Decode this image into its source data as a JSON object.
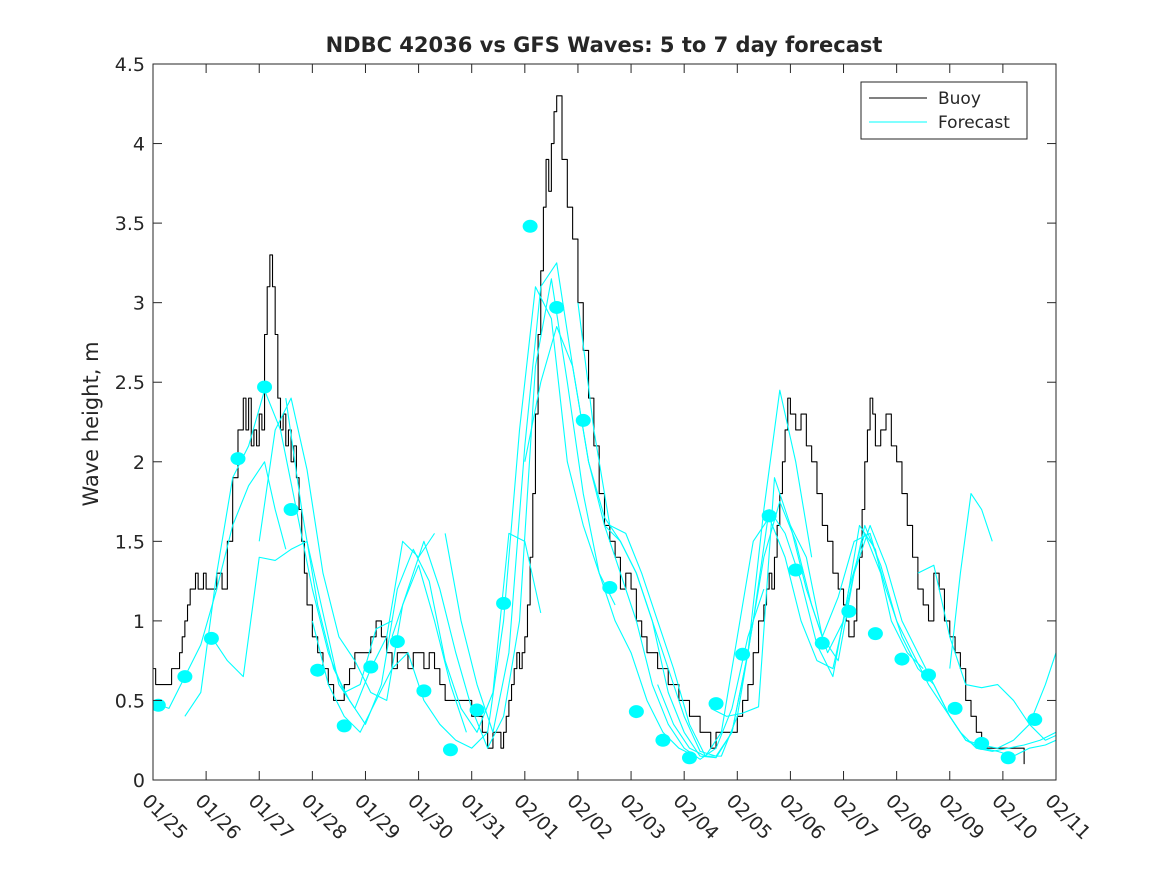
{
  "chart_data": {
    "type": "line",
    "title": "NDBC 42036 vs GFS Waves: 5 to 7 day forecast",
    "xlabel": "",
    "ylabel": "Wave height, m",
    "xlim": [
      0,
      17
    ],
    "ylim": [
      0,
      4.5
    ],
    "x_unit": "days since 01/25",
    "xtick_values": [
      0,
      1,
      2,
      3,
      4,
      5,
      6,
      7,
      8,
      9,
      10,
      11,
      12,
      13,
      14,
      15,
      16,
      17
    ],
    "xtick_labels": [
      "01/25",
      "01/26",
      "01/27",
      "01/28",
      "01/29",
      "01/30",
      "01/31",
      "02/01",
      "02/02",
      "02/03",
      "02/04",
      "02/05",
      "02/06",
      "02/07",
      "02/08",
      "02/09",
      "02/10",
      "02/11"
    ],
    "ytick_values": [
      0,
      0.5,
      1,
      1.5,
      2,
      2.5,
      3,
      3.5,
      4,
      4.5
    ],
    "ytick_labels": [
      "0",
      "0.5",
      "1",
      "1.5",
      "2",
      "2.5",
      "3",
      "3.5",
      "4",
      "4.5"
    ],
    "legend": {
      "position": "top-right",
      "entries": [
        "Buoy",
        "Forecast"
      ]
    },
    "colors": {
      "buoy": "#000000",
      "forecast": "#00ffff",
      "axis": "#262626"
    },
    "series": [
      {
        "name": "Buoy",
        "style": "step",
        "x": [
          0,
          0.05,
          0.1,
          0.2,
          0.35,
          0.5,
          0.55,
          0.6,
          0.65,
          0.7,
          0.75,
          0.8,
          0.85,
          0.9,
          0.95,
          1.0,
          1.1,
          1.2,
          1.3,
          1.4,
          1.5,
          1.6,
          1.7,
          1.75,
          1.8,
          1.85,
          1.9,
          1.95,
          2.0,
          2.05,
          2.1,
          2.15,
          2.2,
          2.25,
          2.3,
          2.35,
          2.4,
          2.45,
          2.5,
          2.55,
          2.6,
          2.65,
          2.7,
          2.75,
          2.8,
          2.85,
          2.9,
          3.0,
          3.1,
          3.2,
          3.3,
          3.4,
          3.5,
          3.6,
          3.7,
          3.8,
          3.9,
          4.0,
          4.1,
          4.2,
          4.3,
          4.4,
          4.5,
          4.6,
          4.7,
          4.8,
          4.9,
          5.0,
          5.1,
          5.2,
          5.3,
          5.4,
          5.5,
          5.6,
          5.7,
          5.8,
          5.9,
          6.0,
          6.1,
          6.2,
          6.3,
          6.4,
          6.5,
          6.55,
          6.6,
          6.65,
          6.7,
          6.75,
          6.8,
          6.85,
          6.9,
          6.95,
          7.0,
          7.05,
          7.1,
          7.15,
          7.2,
          7.25,
          7.3,
          7.35,
          7.4,
          7.45,
          7.5,
          7.55,
          7.6,
          7.7,
          7.8,
          7.9,
          8.0,
          8.1,
          8.2,
          8.3,
          8.4,
          8.5,
          8.6,
          8.7,
          8.8,
          8.9,
          9.0,
          9.1,
          9.2,
          9.3,
          9.5,
          9.7,
          9.9,
          10.1,
          10.3,
          10.5,
          10.6,
          10.7,
          10.8,
          10.9,
          11.0,
          11.1,
          11.2,
          11.3,
          11.4,
          11.5,
          11.55,
          11.6,
          11.65,
          11.7,
          11.75,
          11.8,
          11.85,
          11.9,
          11.95,
          12.0,
          12.1,
          12.2,
          12.3,
          12.4,
          12.5,
          12.6,
          12.7,
          12.8,
          12.9,
          13.0,
          13.05,
          13.1,
          13.15,
          13.2,
          13.25,
          13.3,
          13.35,
          13.4,
          13.45,
          13.5,
          13.55,
          13.6,
          13.7,
          13.8,
          13.9,
          14.0,
          14.1,
          14.2,
          14.3,
          14.4,
          14.5,
          14.6,
          14.7,
          14.8,
          14.9,
          15.0,
          15.1,
          15.2,
          15.3,
          15.4,
          15.5,
          15.6,
          15.7,
          15.8,
          15.9,
          16.0,
          16.1,
          16.2,
          16.3,
          16.4
        ],
        "values": [
          0.7,
          0.6,
          0.6,
          0.6,
          0.7,
          0.8,
          0.9,
          1.0,
          1.1,
          1.2,
          1.2,
          1.3,
          1.2,
          1.2,
          1.3,
          1.2,
          1.2,
          1.3,
          1.2,
          1.5,
          1.9,
          2.2,
          2.4,
          2.2,
          2.4,
          2.1,
          2.2,
          2.1,
          2.3,
          2.2,
          2.8,
          3.1,
          3.3,
          3.1,
          2.8,
          2.4,
          2.2,
          2.3,
          2.1,
          2.2,
          2.0,
          2.1,
          1.9,
          1.7,
          1.5,
          1.3,
          1.1,
          0.9,
          0.8,
          0.7,
          0.6,
          0.5,
          0.5,
          0.6,
          0.7,
          0.8,
          0.8,
          0.8,
          0.9,
          1.0,
          0.9,
          0.8,
          0.7,
          0.8,
          0.8,
          0.7,
          0.8,
          0.8,
          0.7,
          0.8,
          0.7,
          0.6,
          0.5,
          0.5,
          0.5,
          0.5,
          0.5,
          0.4,
          0.4,
          0.3,
          0.2,
          0.3,
          0.3,
          0.2,
          0.3,
          0.4,
          0.5,
          0.6,
          0.7,
          0.8,
          0.7,
          0.8,
          0.9,
          1.1,
          1.4,
          1.8,
          2.3,
          2.8,
          3.2,
          3.6,
          3.9,
          3.7,
          4.0,
          4.2,
          4.3,
          3.9,
          3.6,
          3.4,
          3.0,
          2.7,
          2.4,
          2.1,
          1.8,
          1.6,
          1.5,
          1.4,
          1.2,
          1.3,
          1.2,
          1.0,
          0.9,
          0.8,
          0.7,
          0.6,
          0.5,
          0.4,
          0.3,
          0.2,
          0.3,
          0.3,
          0.3,
          0.3,
          0.4,
          0.5,
          0.6,
          0.8,
          1.0,
          1.1,
          1.2,
          1.3,
          1.2,
          1.4,
          1.6,
          1.8,
          2.0,
          2.2,
          2.4,
          2.3,
          2.2,
          2.3,
          2.1,
          2.0,
          1.8,
          1.6,
          1.5,
          1.3,
          1.2,
          1.1,
          1.0,
          0.9,
          0.9,
          1.0,
          1.2,
          1.4,
          1.7,
          2.0,
          2.2,
          2.4,
          2.3,
          2.1,
          2.2,
          2.3,
          2.1,
          2.0,
          1.8,
          1.6,
          1.4,
          1.2,
          1.1,
          1.0,
          1.3,
          1.2,
          1.0,
          0.9,
          0.8,
          0.7,
          0.5,
          0.4,
          0.3,
          0.2,
          0.2,
          0.2,
          0.2,
          0.2,
          0.2,
          0.2,
          0.2,
          0.1
        ]
      },
      {
        "name": "Forecast run 1",
        "x": [
          0.05,
          0.3,
          0.6,
          0.9,
          1.2,
          1.5,
          1.8,
          2.1,
          2.3,
          2.5
        ],
        "values": [
          0.48,
          0.45,
          0.65,
          0.85,
          1.2,
          1.6,
          1.85,
          2.0,
          1.7,
          1.45
        ]
      },
      {
        "name": "Forecast run 2",
        "x": [
          0.6,
          0.9,
          1.2,
          1.5,
          1.8,
          2.1,
          2.4,
          2.7,
          3.0,
          3.3,
          3.6,
          3.9,
          4.2,
          4.5
        ],
        "values": [
          0.4,
          0.55,
          1.3,
          1.9,
          2.1,
          2.45,
          2.2,
          1.7,
          1.2,
          0.8,
          0.55,
          0.6,
          0.95,
          1.0
        ]
      },
      {
        "name": "Forecast run 3",
        "x": [
          1.1,
          1.4,
          1.7,
          2.0,
          2.3,
          2.6,
          2.9,
          3.2,
          3.5,
          3.8,
          4.1,
          4.4,
          4.7,
          5.0,
          5.3
        ],
        "values": [
          0.9,
          0.75,
          0.65,
          1.4,
          1.38,
          1.45,
          1.5,
          1.05,
          0.6,
          0.45,
          0.7,
          0.9,
          1.5,
          1.4,
          1.55
        ]
      },
      {
        "name": "Forecast run 4",
        "x": [
          2.0,
          2.3,
          2.6,
          2.9,
          3.2,
          3.5,
          3.8,
          4.1,
          4.4,
          4.7,
          5.0,
          5.3,
          5.6,
          5.9
        ],
        "values": [
          1.5,
          2.2,
          2.4,
          1.95,
          1.3,
          0.9,
          0.75,
          0.55,
          0.5,
          1.1,
          1.35,
          1.0,
          0.6,
          0.3
        ]
      },
      {
        "name": "Forecast run 5",
        "x": [
          2.5,
          2.8,
          3.1,
          3.4,
          3.7,
          4.0,
          4.3,
          4.6,
          4.9,
          5.2,
          5.5,
          5.8,
          6.1,
          6.4,
          6.7,
          7.0,
          7.3
        ],
        "values": [
          2.4,
          1.7,
          1.1,
          0.7,
          0.5,
          0.35,
          0.6,
          1.2,
          1.45,
          1.25,
          0.75,
          0.45,
          0.3,
          0.55,
          1.55,
          1.5,
          1.05
        ]
      },
      {
        "name": "Forecast run 6",
        "x": [
          3.0,
          3.3,
          3.6,
          3.9,
          4.2,
          4.5,
          4.8,
          5.1,
          5.4,
          5.7,
          6.0,
          6.3,
          6.6,
          6.9,
          7.2,
          7.5,
          7.8,
          8.1,
          8.4,
          8.7
        ],
        "values": [
          1.0,
          0.6,
          0.4,
          0.3,
          0.5,
          0.7,
          0.8,
          0.5,
          0.35,
          0.25,
          0.2,
          0.3,
          1.0,
          2.2,
          3.1,
          2.9,
          2.0,
          1.6,
          1.3,
          1.1
        ]
      },
      {
        "name": "Forecast run 7",
        "x": [
          4.5,
          4.8,
          5.1,
          5.4,
          5.7,
          6.0,
          6.3,
          6.6,
          6.9,
          7.2,
          7.5,
          7.8,
          8.1,
          8.4,
          8.7,
          9.0,
          9.3,
          9.6,
          9.9,
          10.2
        ],
        "values": [
          0.9,
          1.2,
          1.5,
          1.2,
          0.8,
          0.45,
          0.2,
          0.4,
          1.0,
          2.6,
          3.15,
          2.5,
          1.8,
          1.3,
          1.0,
          0.8,
          0.5,
          0.3,
          0.2,
          0.15
        ]
      },
      {
        "name": "Forecast run 8",
        "x": [
          5.5,
          5.8,
          6.1,
          6.4,
          6.7,
          7.0,
          7.3,
          7.6,
          7.9,
          8.2,
          8.5,
          8.8,
          9.1,
          9.4,
          9.7,
          10.0,
          10.3,
          10.6,
          10.9,
          11.2,
          11.5
        ],
        "values": [
          1.55,
          1.0,
          0.6,
          0.3,
          0.8,
          2.1,
          3.1,
          3.25,
          2.6,
          2.0,
          1.6,
          1.3,
          1.0,
          0.6,
          0.35,
          0.2,
          0.13,
          0.2,
          0.45,
          0.9,
          1.2
        ]
      },
      {
        "name": "Forecast run 9",
        "x": [
          7.0,
          7.3,
          7.6,
          7.9,
          8.2,
          8.5,
          8.8,
          9.1,
          9.4,
          9.7,
          10.0,
          10.3,
          10.6,
          10.9,
          11.2,
          11.5,
          11.8,
          12.1,
          12.4
        ],
        "values": [
          2.0,
          2.5,
          2.85,
          2.6,
          2.0,
          1.65,
          1.5,
          1.3,
          1.0,
          0.7,
          0.4,
          0.18,
          0.15,
          0.3,
          0.8,
          1.7,
          2.45,
          2.0,
          1.4
        ]
      },
      {
        "name": "Forecast run 10",
        "x": [
          8.0,
          8.3,
          8.6,
          8.9,
          9.2,
          9.5,
          9.8,
          10.1,
          10.4,
          10.7,
          11.0,
          11.3,
          11.6,
          11.9,
          12.2,
          12.5,
          12.8,
          13.1,
          13.4,
          13.7
        ],
        "values": [
          3.0,
          2.2,
          1.6,
          1.55,
          1.3,
          1.0,
          0.7,
          0.35,
          0.15,
          0.15,
          0.4,
          1.0,
          1.7,
          1.55,
          1.25,
          0.85,
          0.65,
          1.2,
          1.55,
          1.3
        ]
      },
      {
        "name": "Forecast run 11",
        "x": [
          8.5,
          8.8,
          9.1,
          9.4,
          9.7,
          10.0,
          10.3,
          10.6,
          10.9,
          11.2,
          11.5,
          11.8,
          12.1,
          12.4,
          12.7,
          13.0,
          13.3,
          13.6,
          13.9,
          14.2,
          14.5
        ],
        "values": [
          1.6,
          1.5,
          1.3,
          1.0,
          0.55,
          0.3,
          0.15,
          0.14,
          0.3,
          0.8,
          1.4,
          1.75,
          1.5,
          1.1,
          0.8,
          1.0,
          1.6,
          1.45,
          1.0,
          0.8,
          0.7
        ]
      },
      {
        "name": "Forecast run 12",
        "x": [
          9.5,
          9.8,
          10.1,
          10.4,
          10.7,
          11.0,
          11.3,
          11.6,
          11.9,
          12.2,
          12.5,
          12.8,
          13.1,
          13.4,
          13.7,
          14.0,
          14.3,
          14.6,
          14.9,
          15.2,
          15.5,
          15.8,
          16.1,
          16.4,
          16.7,
          17.0
        ],
        "values": [
          0.6,
          0.35,
          0.2,
          0.15,
          0.3,
          0.9,
          1.5,
          1.65,
          1.4,
          1.0,
          0.75,
          0.7,
          1.15,
          1.6,
          1.35,
          1.0,
          0.8,
          0.6,
          0.45,
          0.3,
          0.2,
          0.18,
          0.2,
          0.22,
          0.25,
          0.3
        ]
      },
      {
        "name": "Forecast run 13",
        "x": [
          10.5,
          10.8,
          11.1,
          11.4,
          11.7,
          12.0,
          12.3,
          12.6,
          12.9,
          13.2,
          13.5,
          13.8,
          14.1,
          14.4,
          14.7,
          15.0,
          15.3,
          15.6,
          15.9,
          16.2,
          16.5,
          16.8,
          17.0
        ],
        "values": [
          0.45,
          0.4,
          0.42,
          0.46,
          1.9,
          1.6,
          1.4,
          0.9,
          1.15,
          1.5,
          1.55,
          1.2,
          0.9,
          0.7,
          0.6,
          0.4,
          0.25,
          0.2,
          0.18,
          0.15,
          0.2,
          0.22,
          0.25
        ]
      },
      {
        "name": "Forecast run 14",
        "x": [
          12.0,
          12.3,
          12.6,
          12.9,
          13.2,
          13.5,
          13.8,
          14.1,
          14.4,
          14.7,
          15.0,
          15.3,
          15.6,
          15.9,
          16.2,
          16.5,
          16.8,
          17.0
        ],
        "values": [
          1.6,
          1.2,
          0.9,
          0.75,
          1.3,
          1.6,
          1.35,
          1.0,
          0.8,
          0.6,
          0.4,
          0.25,
          0.22,
          0.2,
          0.25,
          0.35,
          0.6,
          0.8
        ]
      },
      {
        "name": "Forecast run 15",
        "x": [
          14.4,
          14.7,
          15.0,
          15.3,
          15.6,
          15.9,
          16.2,
          16.5,
          16.8,
          17.0
        ],
        "values": [
          1.3,
          1.35,
          0.9,
          0.6,
          0.58,
          0.6,
          0.5,
          0.35,
          0.25,
          0.28
        ]
      },
      {
        "name": "Forecast run 16",
        "x": [
          15.0,
          15.2,
          15.4,
          15.6,
          15.8
        ],
        "values": [
          0.7,
          1.3,
          1.8,
          1.7,
          1.5
        ]
      }
    ],
    "markers": {
      "name": "Forecast",
      "x": [
        0.1,
        0.6,
        1.1,
        1.6,
        2.1,
        2.6,
        3.1,
        3.6,
        4.1,
        4.6,
        5.1,
        5.6,
        6.1,
        6.6,
        7.1,
        7.6,
        8.1,
        8.6,
        9.1,
        9.6,
        10.1,
        10.6,
        11.1,
        11.6,
        12.1,
        12.6,
        13.1,
        13.6,
        14.1,
        14.6,
        15.1,
        15.6,
        16.1,
        16.6
      ],
      "values": [
        0.47,
        0.65,
        0.89,
        2.02,
        2.47,
        1.7,
        0.69,
        0.34,
        0.71,
        0.87,
        0.56,
        0.19,
        0.44,
        1.11,
        3.48,
        2.97,
        2.26,
        1.21,
        0.43,
        0.25,
        0.14,
        0.48,
        0.79,
        1.66,
        1.32,
        0.86,
        1.06,
        0.92,
        0.76,
        0.66,
        0.45,
        0.23,
        0.14,
        0.38
      ]
    }
  }
}
